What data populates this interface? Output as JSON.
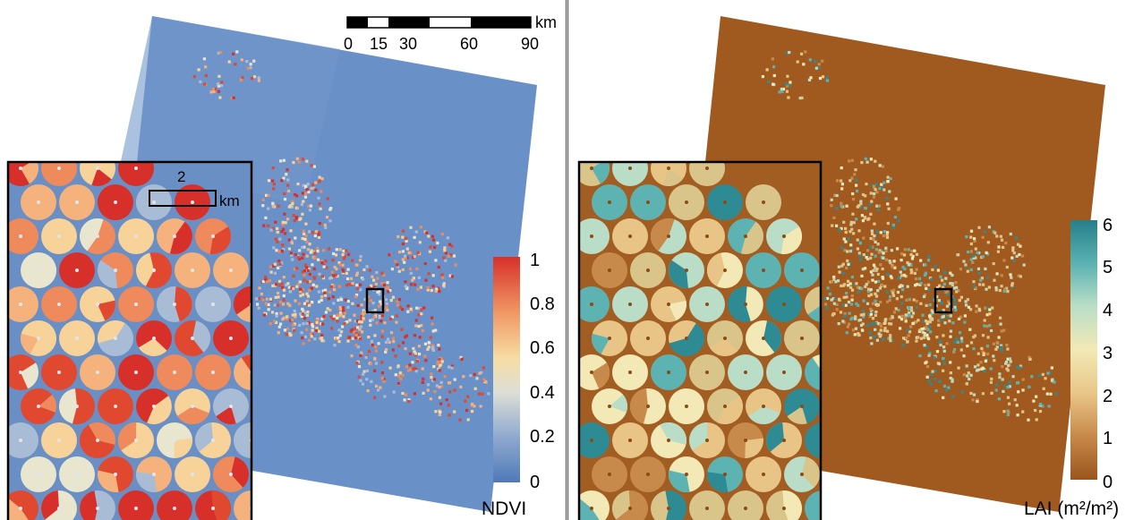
{
  "scale_bar": {
    "unit": "km",
    "ticks": [
      "0",
      "15",
      "30",
      "60",
      "90"
    ]
  },
  "inset_scale": {
    "value": "2",
    "unit": "km"
  },
  "ndvi_panel": {
    "legend_title": "NDVI",
    "legend_ticks": [
      "1",
      "0.8",
      "0.6",
      "0.4",
      "0.2",
      "0"
    ],
    "colors": {
      "background_low": "#5b86bf",
      "mid": "#f1e7b0",
      "high": "#d9412b",
      "scale": [
        "#d7302a",
        "#ee8a5b",
        "#f7d39a",
        "#e9e6cf",
        "#a9bcd6",
        "#4f79b8"
      ]
    }
  },
  "lai_panel": {
    "legend_title": "LAI (m²/m²)",
    "legend_ticks": [
      "6",
      "5",
      "4",
      "3",
      "2",
      "1",
      "0"
    ],
    "colors": {
      "background_low": "#a05a1f",
      "mid": "#f1e6b3",
      "high": "#2e8a93",
      "scale": [
        "#257f8a",
        "#5db3b2",
        "#b9ddc6",
        "#f3e9b6",
        "#e8c587",
        "#c88a4a",
        "#9b551d"
      ]
    }
  }
}
